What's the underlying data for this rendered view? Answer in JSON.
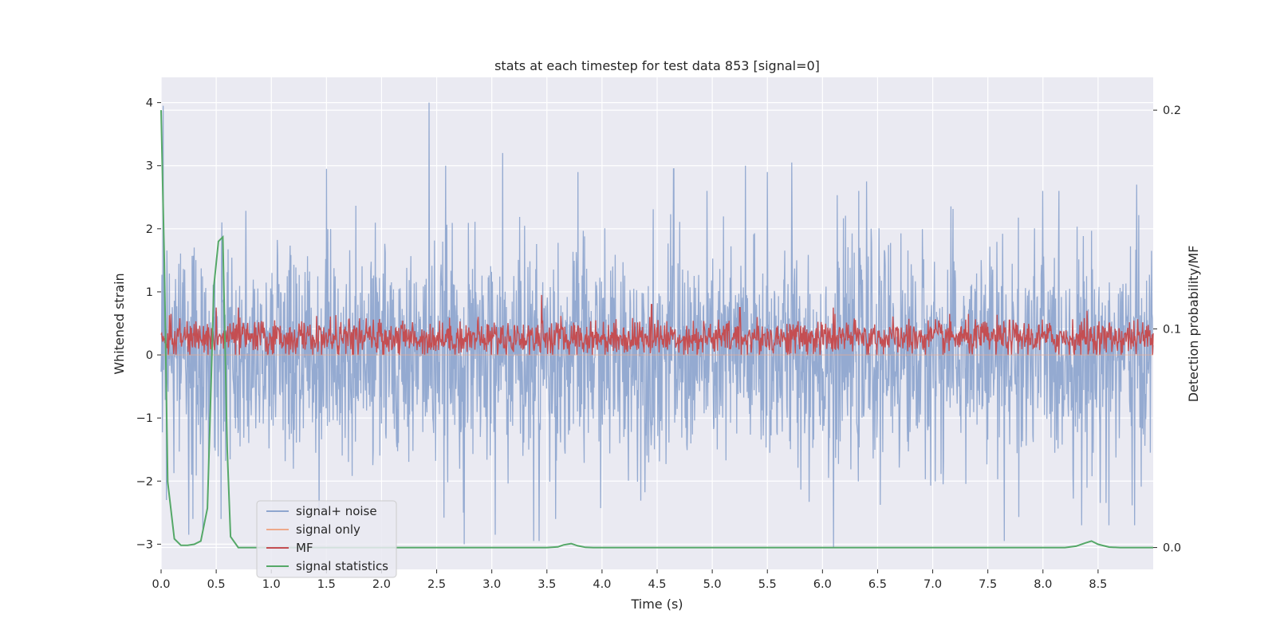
{
  "chart_data": {
    "type": "line",
    "title": "stats at each timestep for test data 853 [signal=0]",
    "xlabel": "Time (s)",
    "ylabel": "Whitened strain",
    "y2label": "Detection probability/MF",
    "xlim": [
      0.0,
      9.0
    ],
    "ylim": [
      -3.4,
      4.4
    ],
    "y2lim": [
      -0.01,
      0.215
    ],
    "xticks": [
      0.0,
      0.5,
      1.0,
      1.5,
      2.0,
      2.5,
      3.0,
      3.5,
      4.0,
      4.5,
      5.0,
      5.5,
      6.0,
      6.5,
      7.0,
      7.5,
      8.0,
      8.5
    ],
    "xtick_labels": [
      "0.0",
      "0.5",
      "1.0",
      "1.5",
      "2.0",
      "2.5",
      "3.0",
      "3.5",
      "4.0",
      "4.5",
      "5.0",
      "5.5",
      "6.0",
      "6.5",
      "7.0",
      "7.5",
      "8.0",
      "8.5"
    ],
    "yticks": [
      -3,
      -2,
      -1,
      0,
      1,
      2,
      3,
      4
    ],
    "ytick_labels": [
      "−3",
      "−2",
      "−1",
      "0",
      "1",
      "2",
      "3",
      "4"
    ],
    "y2ticks": [
      0.0,
      0.1,
      0.2
    ],
    "y2tick_labels": [
      "0.0",
      "0.1",
      "0.2"
    ],
    "grid": true,
    "legend_position": "lower-left",
    "series": [
      {
        "name": "signal+ noise",
        "color": "#8fa6cf",
        "axis": "left",
        "description": "white-noise strain, roughly within -3 to +3 with spikes",
        "envelope_peaks": [
          [
            0.02,
            3.95
          ],
          [
            0.55,
            2.1
          ],
          [
            1.5,
            2.95
          ],
          [
            2.43,
            4.0
          ],
          [
            2.58,
            3.0
          ],
          [
            3.1,
            3.2
          ],
          [
            3.78,
            2.9
          ],
          [
            4.65,
            2.95
          ],
          [
            5.3,
            3.0
          ],
          [
            5.5,
            2.9
          ],
          [
            5.72,
            3.05
          ],
          [
            6.4,
            2.75
          ],
          [
            8.0,
            2.6
          ],
          [
            8.85,
            2.7
          ]
        ],
        "envelope_troughs": [
          [
            0.05,
            -2.3
          ],
          [
            0.25,
            -2.85
          ],
          [
            0.38,
            -2.75
          ],
          [
            3.03,
            -2.85
          ],
          [
            3.38,
            -2.95
          ],
          [
            3.43,
            -2.95
          ],
          [
            2.75,
            -3.0
          ],
          [
            6.1,
            -3.05
          ],
          [
            7.65,
            -2.95
          ],
          [
            8.35,
            -2.7
          ],
          [
            8.6,
            -2.7
          ],
          [
            8.83,
            -2.7
          ]
        ]
      },
      {
        "name": "signal only",
        "color": "#eea98a",
        "axis": "left",
        "values_note": "flat at 0 (signal=0)"
      },
      {
        "name": "MF",
        "color": "#c44e52",
        "axis": "left",
        "description": "matched-filter output fluctuating between 0 and ~0.9 around a mean of ~0.27",
        "peak_values": [
          [
            0.5,
            0.75
          ],
          [
            0.7,
            0.75
          ],
          [
            3.45,
            0.95
          ],
          [
            4.45,
            0.8
          ],
          [
            5.25,
            0.75
          ],
          [
            6.1,
            0.75
          ],
          [
            8.4,
            0.7
          ]
        ]
      },
      {
        "name": "signal statistics",
        "color": "#55a868",
        "axis": "right",
        "x": [
          0.0,
          0.03,
          0.06,
          0.12,
          0.18,
          0.24,
          0.3,
          0.36,
          0.42,
          0.48,
          0.52,
          0.56,
          0.6,
          0.63,
          0.7,
          0.8,
          1.0,
          2.0,
          3.0,
          3.5,
          3.6,
          3.65,
          3.72,
          3.78,
          3.85,
          3.92,
          4.0,
          5.0,
          6.0,
          7.0,
          8.0,
          8.2,
          8.3,
          8.38,
          8.44,
          8.5,
          8.6,
          8.7,
          8.8,
          9.0
        ],
        "y": [
          0.2,
          0.13,
          0.03,
          0.004,
          0.001,
          0.001,
          0.0015,
          0.003,
          0.018,
          0.12,
          0.14,
          0.142,
          0.045,
          0.005,
          0.0,
          0.0,
          0.0,
          0.0,
          0.0,
          0.0,
          0.0003,
          0.0012,
          0.0018,
          0.0008,
          0.0001,
          0.0,
          0.0,
          0.0,
          0.0,
          0.0,
          0.0,
          0.0,
          0.0006,
          0.002,
          0.003,
          0.0015,
          0.0002,
          0.0,
          0.0,
          0.0
        ]
      }
    ]
  }
}
